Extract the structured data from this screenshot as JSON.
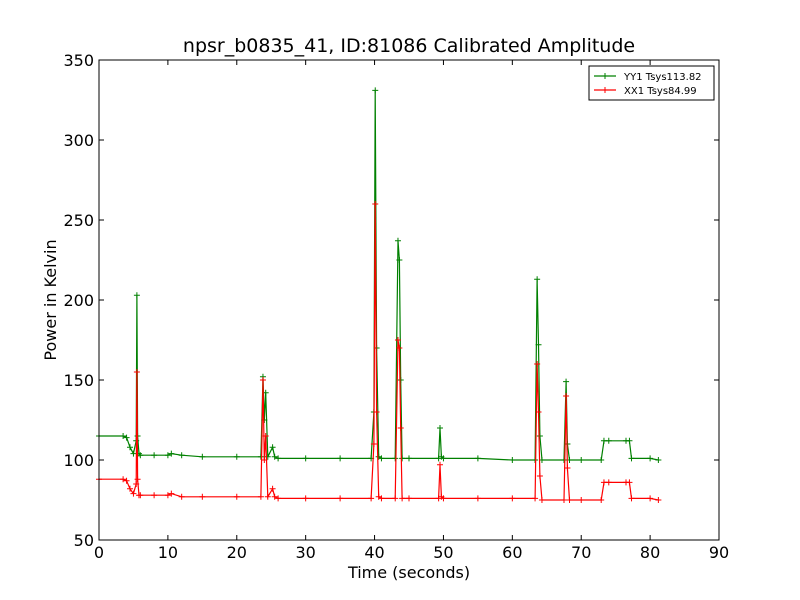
{
  "chart_data": {
    "type": "line",
    "title": "npsr_b0835_41, ID:81086 Calibrated Amplitude",
    "xlabel": "Time (seconds)",
    "ylabel": "Power in Kelvin",
    "xlim": [
      0,
      90
    ],
    "ylim": [
      50,
      350
    ],
    "xticks": [
      0,
      10,
      20,
      30,
      40,
      50,
      60,
      70,
      80,
      90
    ],
    "yticks": [
      50,
      100,
      150,
      200,
      250,
      300,
      350
    ],
    "grid": false,
    "legend_position": "top-right",
    "series": [
      {
        "name": "YY1 Tsys113.82",
        "color": "#008000",
        "x": [
          0,
          3.5,
          4.0,
          4.5,
          5.0,
          5.4,
          5.5,
          5.6,
          5.8,
          6.0,
          8,
          10,
          10.5,
          12,
          15,
          20,
          23.5,
          23.8,
          24.0,
          24.2,
          24.5,
          25.2,
          25.5,
          26,
          30,
          35,
          39.5,
          39.9,
          40.1,
          40.3,
          40.6,
          41,
          43.0,
          43.4,
          43.6,
          43.8,
          44.0,
          45,
          49.3,
          49.5,
          49.7,
          50,
          55,
          60,
          63.3,
          63.6,
          63.8,
          64.0,
          64.3,
          67.5,
          67.8,
          68.0,
          68.3,
          70,
          72.9,
          73.3,
          74,
          76.5,
          77.0,
          77.3,
          80,
          81.2
        ],
        "y": [
          115,
          115,
          114,
          108,
          104,
          112,
          203,
          115,
          104,
          103,
          103,
          103,
          104,
          103,
          102,
          102,
          102,
          152,
          125,
          142,
          102,
          108,
          102,
          101,
          101,
          101,
          101,
          130,
          331,
          170,
          102,
          101,
          101,
          237,
          225,
          150,
          101,
          101,
          101,
          120,
          102,
          101,
          101,
          100,
          100,
          213,
          172,
          115,
          100,
          100,
          149,
          110,
          100,
          100,
          100,
          112,
          112,
          112,
          112,
          101,
          101,
          100
        ]
      },
      {
        "name": "XX1 Tsys84.99",
        "color": "#ff0000",
        "x": [
          0,
          3.5,
          4.0,
          4.5,
          5.0,
          5.4,
          5.5,
          5.6,
          5.8,
          6.0,
          8,
          10,
          10.5,
          12,
          15,
          20,
          23.5,
          23.8,
          24.0,
          24.2,
          24.5,
          25.2,
          25.5,
          26,
          30,
          35,
          39.5,
          39.9,
          40.1,
          40.3,
          40.6,
          41,
          43.0,
          43.4,
          43.6,
          43.8,
          44.0,
          45,
          49.3,
          49.5,
          49.7,
          50,
          55,
          60,
          63.3,
          63.6,
          63.8,
          64.0,
          64.3,
          67.5,
          67.8,
          68.0,
          68.3,
          70,
          72.9,
          73.3,
          74,
          76.5,
          77.0,
          77.3,
          80,
          81.2
        ],
        "y": [
          88,
          88,
          87,
          82,
          79,
          85,
          155,
          88,
          78,
          78,
          78,
          78,
          79,
          77,
          77,
          77,
          77,
          150,
          100,
          115,
          77,
          82,
          77,
          76,
          76,
          76,
          76,
          110,
          260,
          130,
          77,
          76,
          76,
          175,
          170,
          120,
          76,
          76,
          76,
          97,
          77,
          76,
          76,
          76,
          76,
          160,
          130,
          90,
          75,
          75,
          140,
          95,
          75,
          75,
          75,
          86,
          86,
          86,
          86,
          76,
          76,
          75
        ]
      }
    ]
  }
}
